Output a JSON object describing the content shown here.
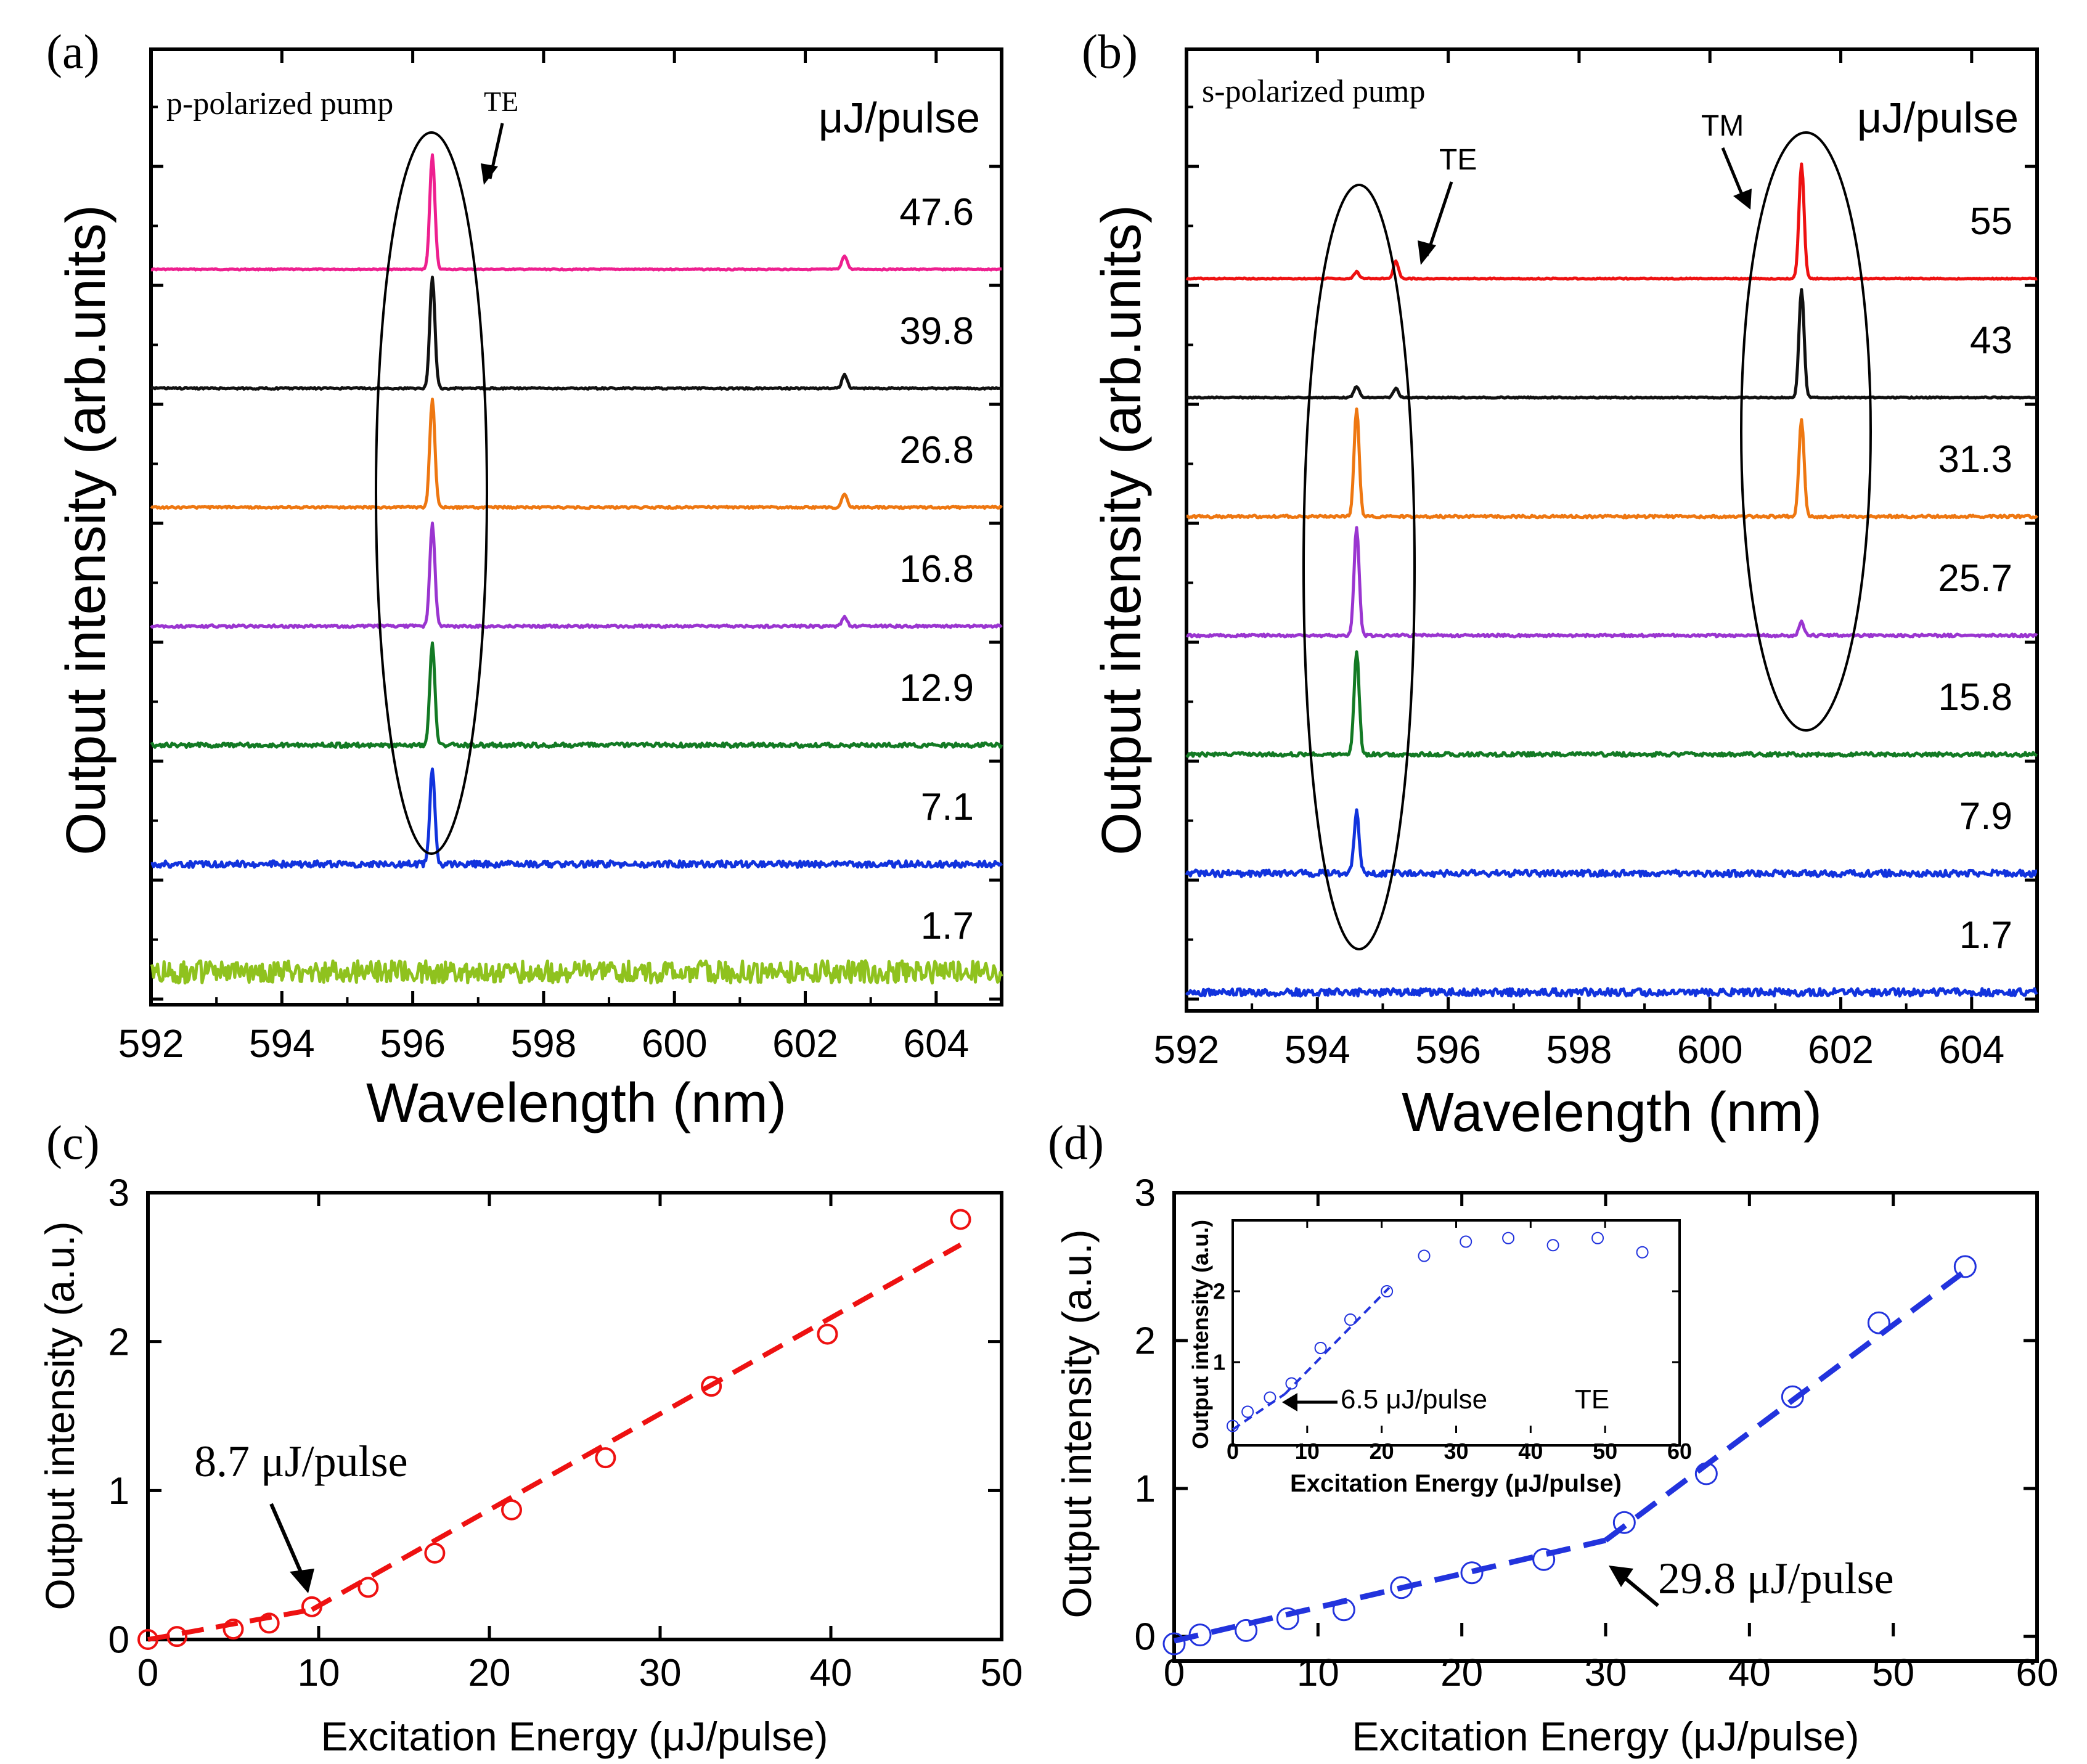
{
  "chart_data": [
    {
      "id": "a",
      "type": "line",
      "panel_label": "(a)",
      "annotation_pump": "p-polarized pump",
      "annotation_mode": "TE",
      "unit_label": "μJ/pulse",
      "xlabel": "Wavelength (nm)",
      "ylabel": "Output intensity (arb.units)",
      "xlim": [
        592,
        605
      ],
      "xticks": [
        "592",
        "594",
        "596",
        "598",
        "600",
        "602",
        "604"
      ],
      "peaks": [
        596.3,
        602.6
      ],
      "series": [
        {
          "name": "47.6",
          "color": "#ee1f8f",
          "noise": 0.06,
          "amps": [
            1.0,
            0.12
          ],
          "offset": 6
        },
        {
          "name": "39.8",
          "color": "#111111",
          "noise": 0.08,
          "amps": [
            0.98,
            0.12
          ],
          "offset": 5
        },
        {
          "name": "26.8",
          "color": "#ee7711",
          "noise": 0.1,
          "amps": [
            0.95,
            0.12
          ],
          "offset": 4
        },
        {
          "name": "16.8",
          "color": "#9a35d0",
          "noise": 0.12,
          "amps": [
            0.9,
            0.08
          ],
          "offset": 3
        },
        {
          "name": "12.9",
          "color": "#137a24",
          "noise": 0.2,
          "amps": [
            0.88,
            0.0
          ],
          "offset": 2
        },
        {
          "name": "7.1",
          "color": "#1133dd",
          "noise": 0.3,
          "amps": [
            0.85,
            0.0
          ],
          "offset": 1
        },
        {
          "name": "1.7",
          "color": "#8fc21e",
          "noise": 0.8,
          "amps": [
            0.0,
            0.0
          ],
          "offset": 0
        }
      ]
    },
    {
      "id": "b",
      "type": "line",
      "panel_label": "(b)",
      "annotation_pump": "s-polarized pump",
      "annotation_te": "TE",
      "annotation_tm": "TM",
      "unit_label": "μJ/pulse",
      "xlabel": "Wavelength (nm)",
      "ylabel": "Output intensity (arb.units)",
      "xlim": [
        592,
        605
      ],
      "xticks": [
        "592",
        "594",
        "596",
        "598",
        "600",
        "602",
        "604"
      ],
      "peaks": [
        594.6,
        595.2,
        601.4
      ],
      "series": [
        {
          "name": "55",
          "color": "#ee1111",
          "noise": 0.06,
          "amps": [
            0.06,
            0.15,
            1.0
          ],
          "offset": 6
        },
        {
          "name": "43",
          "color": "#111111",
          "noise": 0.06,
          "amps": [
            0.1,
            0.08,
            0.95
          ],
          "offset": 5
        },
        {
          "name": "31.3",
          "color": "#ee7711",
          "noise": 0.12,
          "amps": [
            0.95,
            0.0,
            0.85
          ],
          "offset": 4
        },
        {
          "name": "25.7",
          "color": "#9a35d0",
          "noise": 0.12,
          "amps": [
            0.95,
            0.0,
            0.12
          ],
          "offset": 3
        },
        {
          "name": "15.8",
          "color": "#137a24",
          "noise": 0.18,
          "amps": [
            0.9,
            0.0,
            0.0
          ],
          "offset": 2
        },
        {
          "name": "7.9",
          "color": "#1133dd",
          "noise": 0.3,
          "amps": [
            0.55,
            0.0,
            0.0
          ],
          "offset": 1
        },
        {
          "name": "1.7",
          "color": "#1133dd",
          "noise": 0.35,
          "amps": [
            0.0,
            0.0,
            0.0
          ],
          "offset": 0
        }
      ]
    },
    {
      "id": "c",
      "type": "scatter",
      "panel_label": "(c)",
      "title": "",
      "xlabel": "Excitation Energy (μJ/pulse)",
      "ylabel": "Output intensity (a.u.)",
      "xlim": [
        0,
        50
      ],
      "ylim": [
        0,
        3
      ],
      "xticks": [
        "0",
        "10",
        "20",
        "30",
        "40",
        "50"
      ],
      "yticks": [
        "0",
        "1",
        "2",
        "3"
      ],
      "marker_color": "#ee1111",
      "line_color": "#ee1111",
      "threshold_label": "8.7 μJ/pulse",
      "threshold_point": [
        9.5,
        0.22
      ],
      "points": [
        {
          "x": 0.0,
          "y": 0.0
        },
        {
          "x": 1.7,
          "y": 0.02
        },
        {
          "x": 5.0,
          "y": 0.07
        },
        {
          "x": 7.1,
          "y": 0.11
        },
        {
          "x": 9.6,
          "y": 0.22
        },
        {
          "x": 12.9,
          "y": 0.35
        },
        {
          "x": 16.8,
          "y": 0.58
        },
        {
          "x": 21.3,
          "y": 0.87
        },
        {
          "x": 26.8,
          "y": 1.22
        },
        {
          "x": 33.0,
          "y": 1.7
        },
        {
          "x": 39.8,
          "y": 2.05
        },
        {
          "x": 47.6,
          "y": 2.82
        }
      ],
      "fit_lines": [
        {
          "x": [
            0.0,
            9.6
          ],
          "y": [
            0.0,
            0.2
          ]
        },
        {
          "x": [
            9.6,
            47.6
          ],
          "y": [
            0.2,
            2.65
          ]
        }
      ]
    },
    {
      "id": "d",
      "type": "scatter",
      "panel_label": "(d)",
      "xlabel": "Excitation Energy (μJ/pulse)",
      "ylabel": "Output intensity (a.u.)",
      "xlim": [
        0,
        60
      ],
      "ylim": [
        0,
        3
      ],
      "xticks": [
        "0",
        "10",
        "20",
        "30",
        "40",
        "50",
        "60"
      ],
      "yticks": [
        "0",
        "1",
        "2",
        "3"
      ],
      "marker_color": "#2233dd",
      "line_color": "#2233dd",
      "threshold_label": "29.8 μJ/pulse",
      "threshold_point": [
        30.0,
        0.65
      ],
      "points": [
        {
          "x": 0.0,
          "y": -0.05
        },
        {
          "x": 1.8,
          "y": 0.01
        },
        {
          "x": 5.0,
          "y": 0.04
        },
        {
          "x": 7.9,
          "y": 0.12
        },
        {
          "x": 11.8,
          "y": 0.18
        },
        {
          "x": 15.8,
          "y": 0.33
        },
        {
          "x": 20.7,
          "y": 0.43
        },
        {
          "x": 25.7,
          "y": 0.52
        },
        {
          "x": 31.3,
          "y": 0.77
        },
        {
          "x": 37.0,
          "y": 1.1
        },
        {
          "x": 43.0,
          "y": 1.62
        },
        {
          "x": 49.0,
          "y": 2.12
        },
        {
          "x": 55.0,
          "y": 2.5
        }
      ],
      "fit_lines": [
        {
          "x": [
            0.0,
            30.0
          ],
          "y": [
            -0.03,
            0.65
          ]
        },
        {
          "x": [
            30.0,
            55.0
          ],
          "y": [
            0.65,
            2.47
          ]
        }
      ],
      "inset": {
        "xlabel": "Excitation Energy (μJ/pulse)",
        "ylabel": "Output intensity (a.u.)",
        "xlim": [
          0,
          60
        ],
        "ylim": [
          0,
          3
        ],
        "xticks": [
          "0",
          "10",
          "20",
          "30",
          "40",
          "50",
          "60"
        ],
        "yticks": [
          "1",
          "2"
        ],
        "threshold_label": "6.5 μJ/pulse",
        "mode_label": "TE",
        "threshold_point": [
          7.0,
          0.55
        ],
        "points": [
          {
            "x": 0.0,
            "y": 0.1
          },
          {
            "x": 2.0,
            "y": 0.3
          },
          {
            "x": 5.0,
            "y": 0.5
          },
          {
            "x": 7.9,
            "y": 0.7
          },
          {
            "x": 11.8,
            "y": 1.2
          },
          {
            "x": 15.8,
            "y": 1.6
          },
          {
            "x": 20.7,
            "y": 2.0
          },
          {
            "x": 25.7,
            "y": 2.5
          },
          {
            "x": 31.3,
            "y": 2.7
          },
          {
            "x": 37.0,
            "y": 2.75
          },
          {
            "x": 43.0,
            "y": 2.65
          },
          {
            "x": 49.0,
            "y": 2.75
          },
          {
            "x": 55.0,
            "y": 2.55
          }
        ],
        "fit_lines": [
          {
            "x": [
              0.0,
              7.0
            ],
            "y": [
              0.05,
              0.55
            ]
          },
          {
            "x": [
              7.0,
              21.0
            ],
            "y": [
              0.55,
              2.05
            ]
          }
        ]
      }
    }
  ]
}
